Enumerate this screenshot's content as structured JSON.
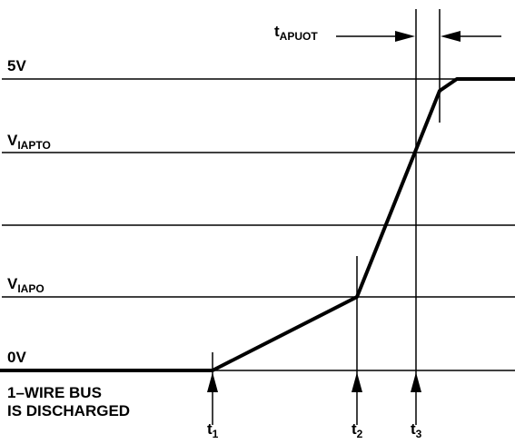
{
  "levels": [
    {
      "label": "5V"
    },
    {
      "label": "V",
      "sub": "IAPTO"
    },
    {
      "label": "V",
      "sub": "IAPO"
    },
    {
      "label": "0V"
    }
  ],
  "note": [
    "1–WIRE BUS",
    "IS DISCHARGED"
  ],
  "times": [
    {
      "label": "t",
      "sub": "1"
    },
    {
      "label": "t",
      "sub": "2"
    },
    {
      "label": "t",
      "sub": "3"
    }
  ],
  "interval": {
    "label": "t",
    "sub": "APUOT"
  }
}
